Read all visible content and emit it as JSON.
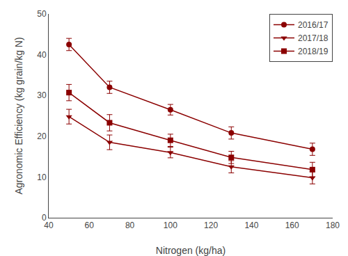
{
  "chart_data": {
    "type": "line",
    "xlabel": "Nitrogen (kg/ha)",
    "ylabel": "Agronomic Efficiency (kg grain/kg N)",
    "x": [
      50,
      70,
      100,
      130,
      170
    ],
    "series": [
      {
        "name": "2016/17",
        "values": [
          42.5,
          32.0,
          26.5,
          20.8,
          16.8
        ],
        "yerr": [
          1.5,
          1.5,
          1.3,
          1.5,
          1.5
        ],
        "marker": "circle"
      },
      {
        "name": "2017/18",
        "values": [
          24.8,
          18.5,
          16.0,
          12.5,
          9.8
        ],
        "yerr": [
          1.8,
          1.8,
          1.3,
          1.5,
          1.5
        ],
        "marker": "triangle-down"
      },
      {
        "name": "2018/19",
        "values": [
          30.7,
          23.3,
          19.0,
          14.8,
          11.8
        ],
        "yerr": [
          2.0,
          2.0,
          1.5,
          1.5,
          1.8
        ],
        "marker": "square"
      }
    ],
    "color": "#8B0000",
    "xlim": [
      40,
      180
    ],
    "ylim": [
      0,
      50
    ],
    "xticks": [
      40,
      60,
      80,
      100,
      120,
      140,
      160,
      180
    ],
    "yticks": [
      0,
      10,
      20,
      30,
      40,
      50
    ],
    "grid": false,
    "legend": "upper right"
  }
}
